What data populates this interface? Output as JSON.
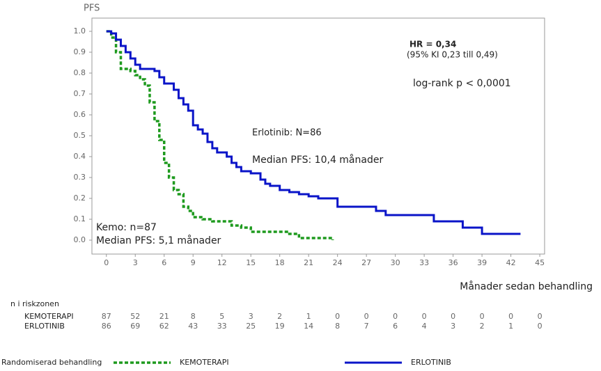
{
  "chart_data": {
    "type": "step",
    "y_label": "PFS",
    "x_label": "Månader sedan behandling",
    "annotations": [
      "HR = 0,34",
      "(95% KI 0,23 till 0,49)",
      "log-rank p < 0,0001",
      "Erlotinib: N=86",
      "Median PFS: 10,4 månader",
      "Kemo: n=87",
      "Median PFS: 5,1 månader"
    ],
    "xlim": [
      -1.5,
      45.5
    ],
    "ylim": [
      -0.1,
      1.1
    ],
    "xticks": [
      0,
      3,
      6,
      9,
      12,
      15,
      18,
      21,
      24,
      27,
      30,
      33,
      36,
      39,
      42,
      45
    ],
    "yticks": [
      {
        "value": 0,
        "label": "0.0"
      },
      0.1,
      0.2,
      0.3,
      0.4,
      0.5,
      0.6,
      0.7,
      0.8,
      0.9,
      {
        "value": 1,
        "label": "1.0"
      }
    ],
    "risk_title": "n i riskzonen",
    "legend_title": "Randomiserad behandling",
    "series": [
      {
        "name": "KEMOTERAPI",
        "color": "#1e9a1e",
        "dashed": true,
        "x": [
          0,
          0.5,
          1,
          1.5,
          2.5,
          3,
          3.5,
          4,
          4.5,
          5,
          5.5,
          6,
          6.5,
          7,
          7.5,
          8,
          8.5,
          9,
          10,
          11,
          13,
          14,
          15,
          19,
          20,
          23.5
        ],
        "values": [
          1.0,
          0.97,
          0.9,
          0.82,
          0.81,
          0.79,
          0.77,
          0.74,
          0.66,
          0.57,
          0.48,
          0.37,
          0.3,
          0.24,
          0.22,
          0.16,
          0.14,
          0.11,
          0.1,
          0.09,
          0.07,
          0.06,
          0.04,
          0.03,
          0.01,
          0.0
        ],
        "at_risk": [
          87,
          52,
          21,
          8,
          5,
          3,
          2,
          1,
          0,
          0,
          0,
          0,
          0,
          0,
          0,
          0
        ]
      },
      {
        "name": "ERLOTINIB",
        "color": "#0a14c8",
        "dashed": false,
        "x": [
          0,
          0.5,
          1,
          1.5,
          2,
          2.5,
          3,
          3.5,
          5,
          5.5,
          6,
          7,
          7.5,
          8,
          8.5,
          9,
          9.5,
          10,
          10.5,
          11,
          11.5,
          12.5,
          13,
          13.5,
          14,
          15,
          16,
          16.5,
          17,
          18,
          19,
          20,
          21,
          22,
          24,
          28,
          29,
          34,
          37,
          39,
          43
        ],
        "values": [
          1.0,
          0.99,
          0.96,
          0.93,
          0.9,
          0.87,
          0.84,
          0.82,
          0.81,
          0.78,
          0.75,
          0.72,
          0.68,
          0.65,
          0.62,
          0.55,
          0.53,
          0.51,
          0.47,
          0.44,
          0.42,
          0.4,
          0.37,
          0.35,
          0.33,
          0.32,
          0.29,
          0.27,
          0.26,
          0.24,
          0.23,
          0.22,
          0.21,
          0.2,
          0.16,
          0.14,
          0.12,
          0.09,
          0.06,
          0.03,
          0.03
        ],
        "at_risk": [
          86,
          69,
          62,
          43,
          33,
          25,
          19,
          14,
          8,
          7,
          6,
          4,
          3,
          2,
          1,
          0
        ]
      }
    ]
  }
}
